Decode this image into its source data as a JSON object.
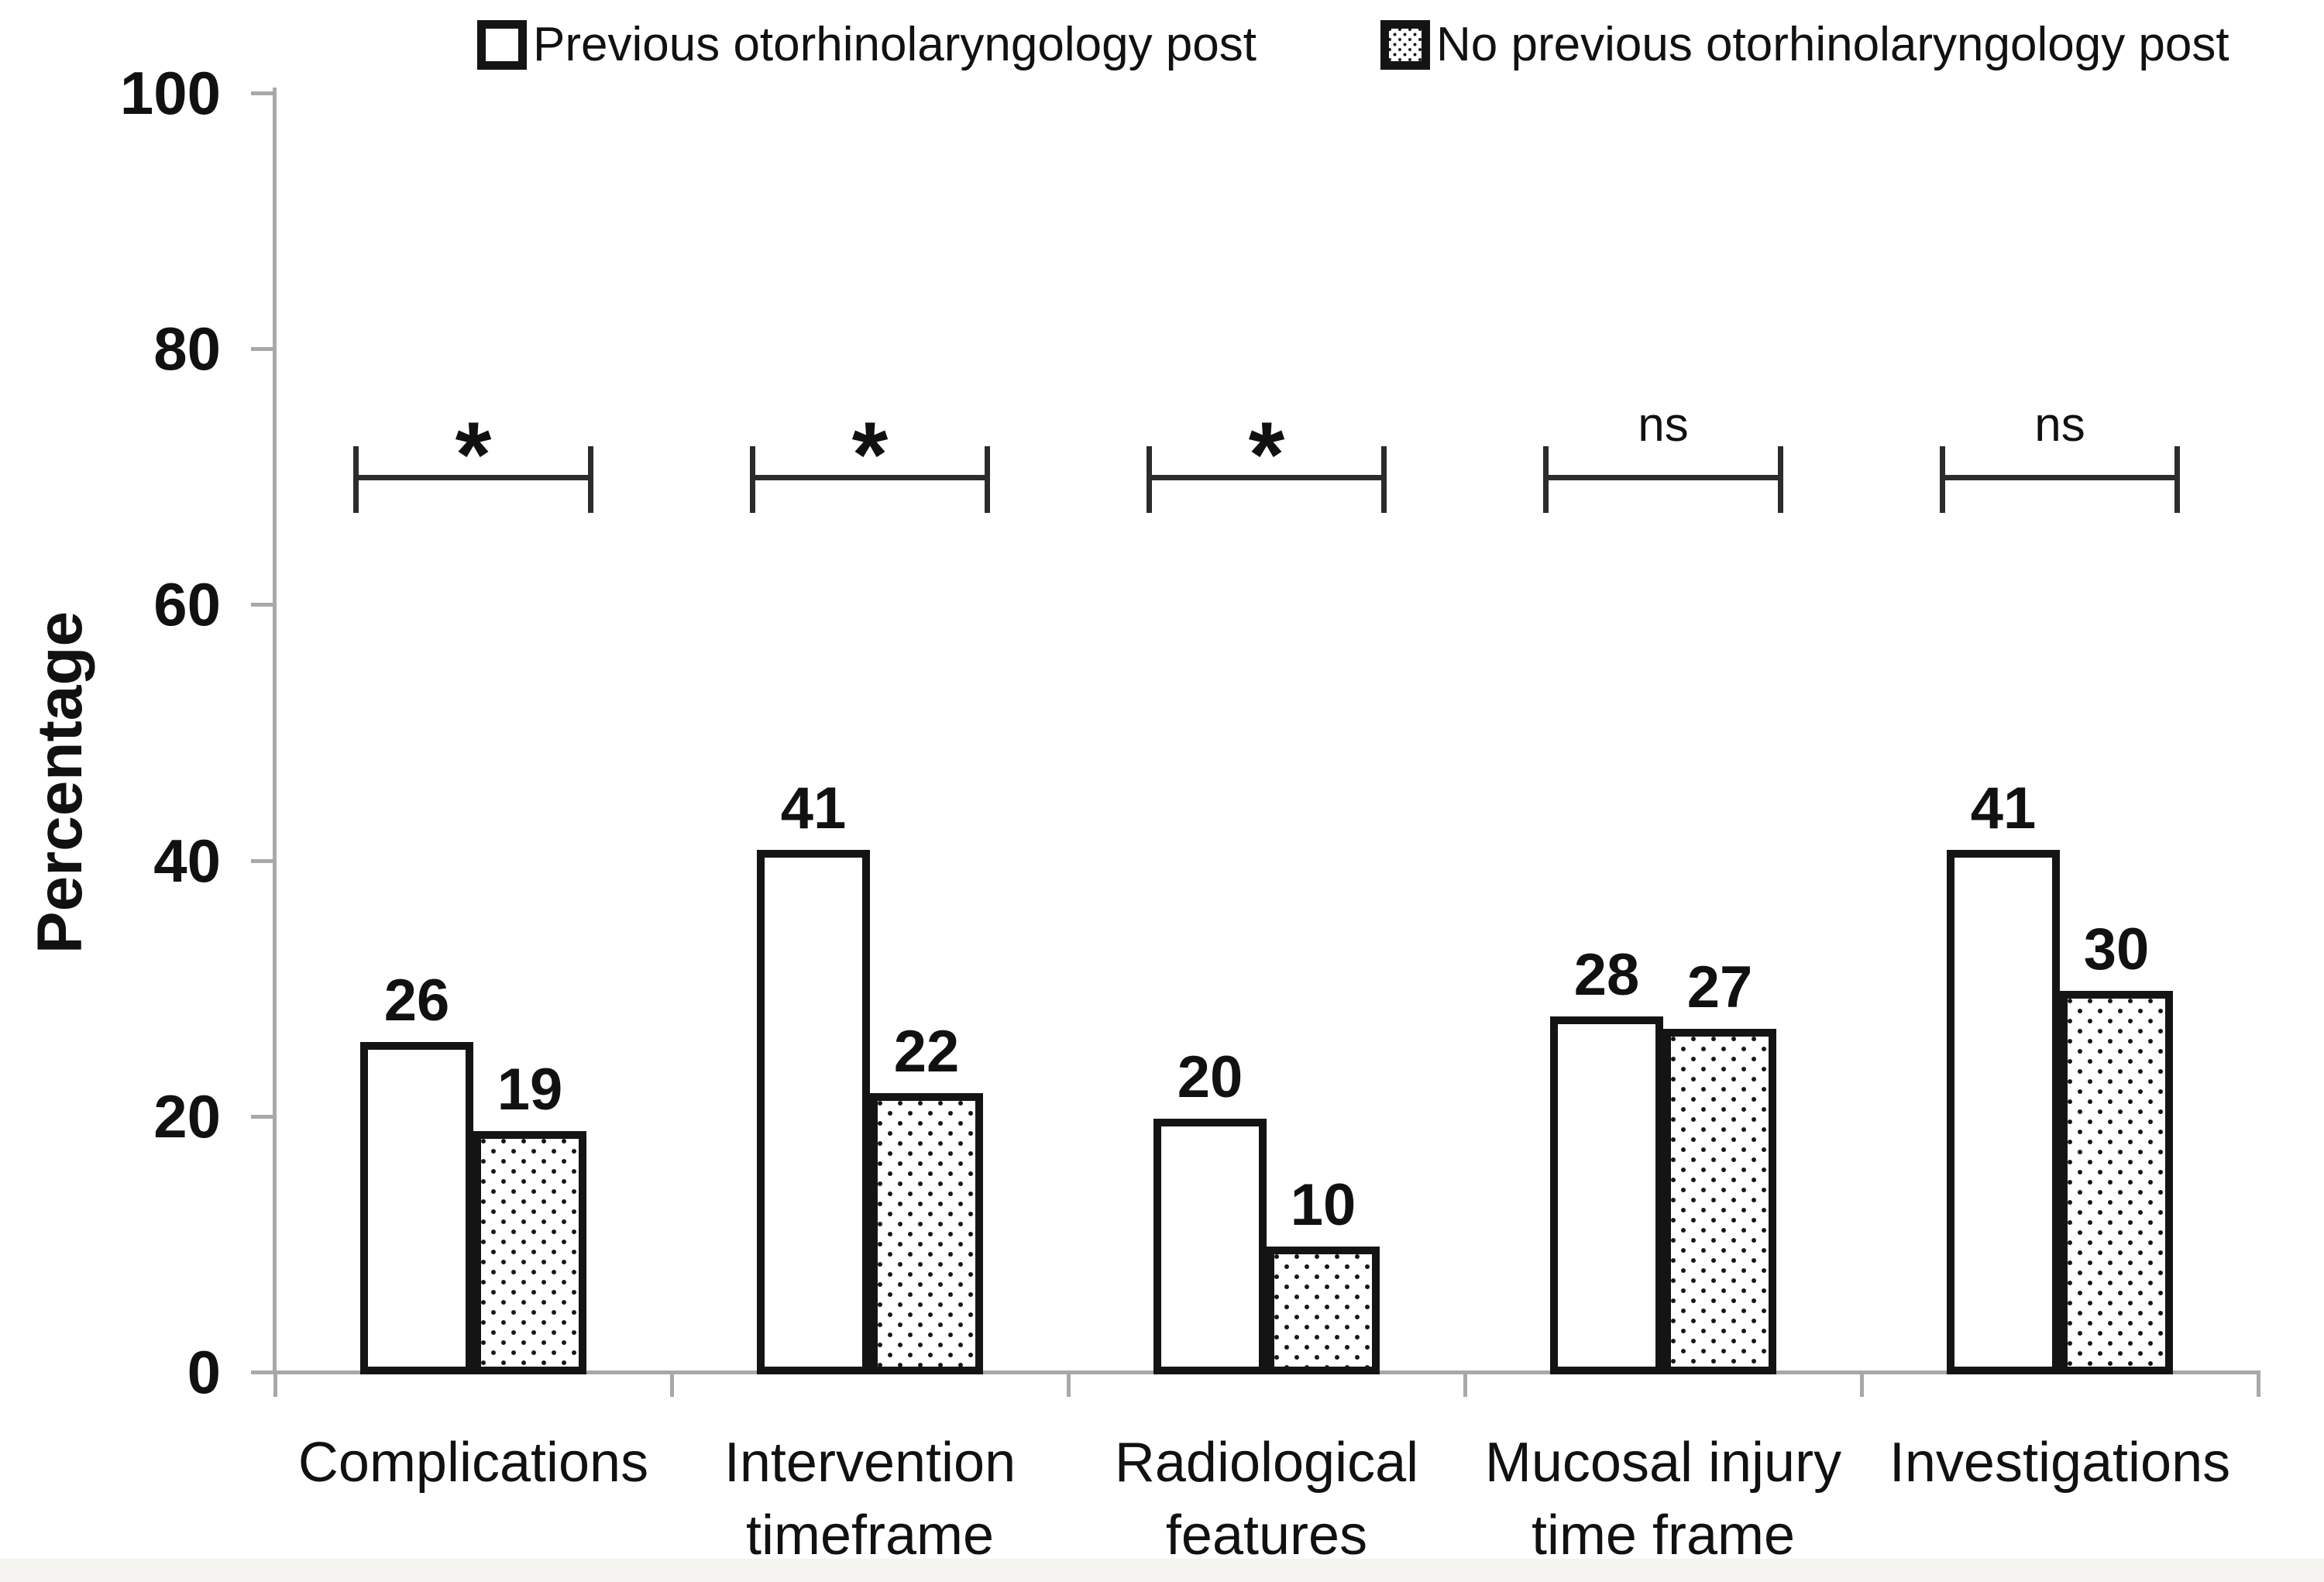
{
  "legend": {
    "items": [
      {
        "label": "Previous otorhinolaryngology post",
        "swatch": "plain"
      },
      {
        "label": "No previous otorhinolaryngology post",
        "swatch": "dotted"
      }
    ]
  },
  "chart_data": {
    "type": "bar",
    "title": "",
    "xlabel": "",
    "ylabel": "Percentage",
    "ylim": [
      0,
      100
    ],
    "yticks": [
      0,
      20,
      40,
      60,
      80,
      100
    ],
    "grid": false,
    "legend_position": "top",
    "categories": [
      "Complications",
      "Intervention timeframe",
      "Radiological features",
      "Mucosal injury time frame",
      "Investigations"
    ],
    "series": [
      {
        "name": "Previous otorhinolaryngology post",
        "pattern": "plain-white",
        "values": [
          26,
          41,
          20,
          28,
          41
        ]
      },
      {
        "name": "No previous otorhinolaryngology post",
        "pattern": "dotted",
        "values": [
          19,
          22,
          10,
          27,
          30
        ]
      }
    ],
    "bar_value_labels": {
      "previous": [
        26,
        41,
        20,
        28,
        41
      ],
      "no_previous": [
        19,
        22,
        10,
        27,
        30
      ]
    },
    "significance_markers": {
      "labels": [
        "*",
        "*",
        "*",
        "ns",
        "ns"
      ],
      "bracket_level_pct": 70
    }
  },
  "colors": {
    "bar_fill": "#ffffff",
    "bar_border": "#141414",
    "axis": "#a8a8a8",
    "bracket": "#2c2c2c",
    "text": "#111111",
    "bottom_band": "#f5f3f0"
  }
}
